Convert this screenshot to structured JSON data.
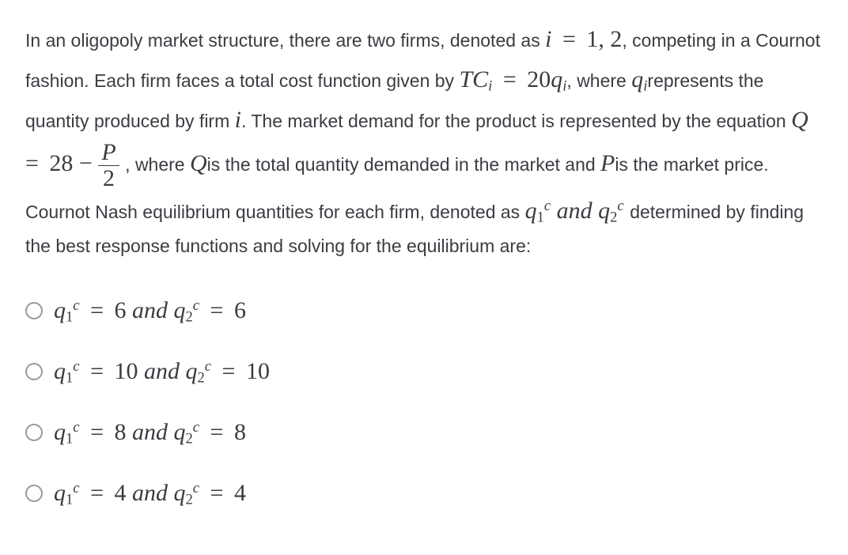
{
  "question": {
    "seg1": "In an oligopoly market structure, there are two firms, denoted as ",
    "m1": "i = 1, 2",
    "seg2": ", competing in a Cournot fashion. Each firm faces a total cost function given by ",
    "m2_lhs": "TC",
    "m2_sub": "i",
    "m2_eq": " = ",
    "m2_rhs": "20q",
    "m2_rhs_sub": "i",
    "seg3": ", where ",
    "m3": "q",
    "m3_sub": "i",
    "seg4": "represents the quantity produced by firm ",
    "m4": "i",
    "seg5": ". The market demand for the product is represented by the equation ",
    "m5_lhs": "Q",
    "m5_eq": " = ",
    "m5_num": "28 − ",
    "m5_frac_num": "P",
    "m5_frac_den": "2",
    "seg6": " , where ",
    "m6": "Q",
    "seg7": "is the total quantity demanded in the market and ",
    "m7": "P",
    "seg8": "is the market price. Cournot Nash equilibrium quantities for each firm, denoted as ",
    "m8a": "q",
    "m8a_sub": "1",
    "m8a_sup": "c",
    "m8_and": " and ",
    "m8b": "q",
    "m8b_sub": "2",
    "m8b_sup": "c",
    "seg9": " determined by finding the best response functions and solving for the equilibrium are:"
  },
  "options": [
    {
      "q1": "6",
      "q2": "6"
    },
    {
      "q1": "10",
      "q2": "10"
    },
    {
      "q1": "8",
      "q2": "8"
    },
    {
      "q1": "4",
      "q2": "4"
    }
  ],
  "labels": {
    "q1": "q",
    "sub1": "1",
    "supc": "c",
    "q2": "q",
    "sub2": "2",
    "and": " and ",
    "eq": "="
  }
}
